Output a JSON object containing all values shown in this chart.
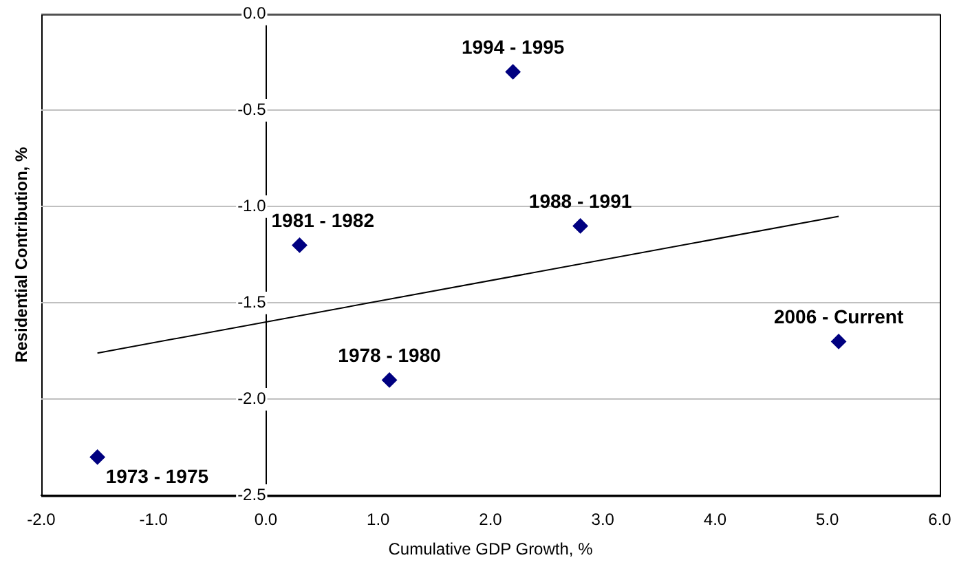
{
  "chart_data": {
    "type": "scatter",
    "xlabel": "Cumulative GDP Growth, %",
    "ylabel": "Residential Contribution, %",
    "series": [
      {
        "color": "#000080",
        "x": [
          -1.5,
          0.3,
          1.1,
          2.2,
          2.8,
          5.1
        ],
        "values": [
          -2.3,
          -1.2,
          -1.9,
          -0.3,
          -1.1,
          -1.7
        ],
        "marker": "diamond"
      },
      {
        "type": "line",
        "color": "#000000",
        "x": [
          -1.5,
          5.1
        ],
        "values": [
          -1.76,
          -1.05
        ],
        "marker": "none"
      }
    ],
    "annotations": [
      {
        "text": "1973 - 1975",
        "x": -1.5,
        "y": -2.3
      },
      {
        "text": "1981 - 1982",
        "x": 0.3,
        "y": -1.2
      },
      {
        "text": "1978 - 1980",
        "x": 1.1,
        "y": -1.9
      },
      {
        "text": "1994 - 1995",
        "x": 2.2,
        "y": -0.3
      },
      {
        "text": "1988 - 1991",
        "x": 2.8,
        "y": -1.1
      },
      {
        "text": "2006 - Current",
        "x": 5.1,
        "y": -1.7
      }
    ],
    "xlim": [
      -2,
      6
    ],
    "xticks": [
      {
        "value": -2,
        "label": "-2.0"
      },
      {
        "value": -1,
        "label": "-1.0"
      },
      {
        "value": 0,
        "label": "0.0"
      },
      {
        "value": 1,
        "label": "1.0"
      },
      {
        "value": 2,
        "label": "2.0"
      },
      {
        "value": 3,
        "label": "3.0"
      },
      {
        "value": 4,
        "label": "4.0"
      },
      {
        "value": 5,
        "label": "5.0"
      },
      {
        "value": 6,
        "label": "6.0"
      }
    ],
    "ylim": [
      -2.5,
      0
    ],
    "yticks": [
      {
        "value": -2.5,
        "label": "-2.5"
      },
      {
        "value": -2,
        "label": "-2.0"
      },
      {
        "value": -1.5,
        "label": "-1.5"
      },
      {
        "value": -1,
        "label": "-1.0"
      },
      {
        "value": -0.5,
        "label": "-0.5"
      },
      {
        "value": 0,
        "label": "0.0"
      }
    ],
    "grid": "y",
    "legend": false
  }
}
